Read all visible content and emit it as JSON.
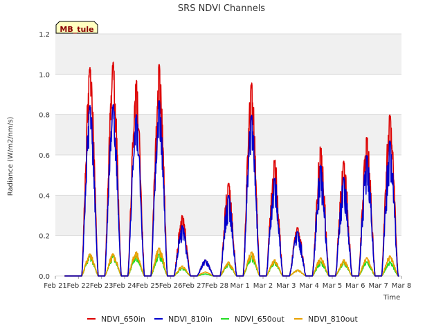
{
  "chart_data": {
    "type": "line",
    "title": "SRS NDVI Channels",
    "xlabel": "Time",
    "ylabel": "Radiance (W/m2/nm/s)",
    "site_label": "MB_tule",
    "ylim": [
      0.0,
      1.2
    ],
    "yticks": [
      0.0,
      0.2,
      0.4,
      0.6,
      0.8,
      1.0,
      1.2
    ],
    "ytick_labels": [
      "0.0",
      "0.2",
      "0.4",
      "0.6",
      "0.8",
      "1.0",
      "1.2"
    ],
    "xlim": [
      0,
      15
    ],
    "xticks": [
      0,
      1,
      2,
      3,
      4,
      5,
      6,
      7,
      8,
      9,
      10,
      11,
      12,
      13,
      14,
      15
    ],
    "xtick_labels": [
      "Feb 21",
      "Feb 22",
      "Feb 23",
      "Feb 24",
      "Feb 25",
      "Feb 26",
      "Feb 27",
      "Feb 28",
      "Mar 1",
      "Mar 2",
      "Mar 3",
      "Mar 4",
      "Mar 5",
      "Mar 6",
      "Mar 7",
      "Mar 8"
    ],
    "grid": true,
    "day_peaks": [
      {
        "day": "Feb 22",
        "center": 1.5,
        "NDVI_650in": 1.04,
        "NDVI_810in": 0.85,
        "NDVI_650out": 0.1,
        "NDVI_810out": 0.11
      },
      {
        "day": "Feb 23",
        "center": 2.5,
        "NDVI_650in": 1.06,
        "NDVI_810in": 0.85,
        "NDVI_650out": 0.1,
        "NDVI_810out": 0.11
      },
      {
        "day": "Feb 24",
        "center": 3.5,
        "NDVI_650in": 0.97,
        "NDVI_810in": 0.8,
        "NDVI_650out": 0.1,
        "NDVI_810out": 0.12
      },
      {
        "day": "Feb 25",
        "center": 4.5,
        "NDVI_650in": 1.05,
        "NDVI_810in": 0.87,
        "NDVI_650out": 0.11,
        "NDVI_810out": 0.14
      },
      {
        "day": "Feb 26",
        "center": 5.5,
        "NDVI_650in": 0.3,
        "NDVI_810in": 0.25,
        "NDVI_650out": 0.04,
        "NDVI_810out": 0.05
      },
      {
        "day": "Feb 27",
        "center": 6.5,
        "NDVI_650in": 0.08,
        "NDVI_810in": 0.08,
        "NDVI_650out": 0.01,
        "NDVI_810out": 0.02
      },
      {
        "day": "Feb 28",
        "center": 7.5,
        "NDVI_650in": 0.46,
        "NDVI_810in": 0.4,
        "NDVI_650out": 0.06,
        "NDVI_810out": 0.07
      },
      {
        "day": "Mar 1",
        "center": 8.5,
        "NDVI_650in": 0.96,
        "NDVI_810in": 0.8,
        "NDVI_650out": 0.1,
        "NDVI_810out": 0.12
      },
      {
        "day": "Mar 2",
        "center": 9.5,
        "NDVI_650in": 0.58,
        "NDVI_810in": 0.49,
        "NDVI_650out": 0.07,
        "NDVI_810out": 0.08
      },
      {
        "day": "Mar 3",
        "center": 10.5,
        "NDVI_650in": 0.24,
        "NDVI_810in": 0.22,
        "NDVI_650out": 0.03,
        "NDVI_810out": 0.03
      },
      {
        "day": "Mar 4",
        "center": 11.5,
        "NDVI_650in": 0.64,
        "NDVI_810in": 0.55,
        "NDVI_650out": 0.07,
        "NDVI_810out": 0.09
      },
      {
        "day": "Mar 5",
        "center": 12.5,
        "NDVI_650in": 0.57,
        "NDVI_810in": 0.49,
        "NDVI_650out": 0.07,
        "NDVI_810out": 0.08
      },
      {
        "day": "Mar 6",
        "center": 13.5,
        "NDVI_650in": 0.69,
        "NDVI_810in": 0.6,
        "NDVI_650out": 0.07,
        "NDVI_810out": 0.09
      },
      {
        "day": "Mar 7",
        "center": 14.5,
        "NDVI_650in": 0.8,
        "NDVI_810in": 0.67,
        "NDVI_650out": 0.07,
        "NDVI_810out": 0.1
      }
    ],
    "series": [
      {
        "name": "NDVI_650in",
        "key": "NDVI_650in",
        "color": "#dd0000"
      },
      {
        "name": "NDVI_810in",
        "key": "NDVI_810in",
        "color": "#0000cc"
      },
      {
        "name": "NDVI_650out",
        "key": "NDVI_650out",
        "color": "#22dd22"
      },
      {
        "name": "NDVI_810out",
        "key": "NDVI_810out",
        "color": "#e8a000"
      }
    ],
    "legend_position": "bottom"
  }
}
